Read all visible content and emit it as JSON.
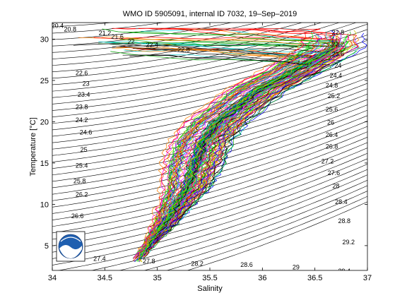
{
  "chart_data": {
    "type": "line",
    "title": "WMO ID 5905091, internal ID 7032, 19–Sep–2019",
    "xlabel": "Salinity",
    "ylabel": "Temperature [°C]",
    "xlim": [
      34,
      37
    ],
    "ylim": [
      2,
      32
    ],
    "xticks": [
      34,
      34.5,
      35,
      35.5,
      36,
      36.5,
      37
    ],
    "xtick_labels": [
      "34",
      "34.5",
      "35",
      "35.5",
      "36",
      "36.5",
      "37"
    ],
    "yticks": [
      5,
      10,
      15,
      20,
      25,
      30
    ],
    "ytick_labels": [
      "5",
      "10",
      "15",
      "20",
      "25",
      "30"
    ],
    "grid": false,
    "isopycnal_labels": [
      {
        "text": "20.4",
        "s": 34.05,
        "t": 31.6
      },
      {
        "text": "20.8",
        "s": 34.17,
        "t": 31.2
      },
      {
        "text": "21.2",
        "s": 34.5,
        "t": 30.7
      },
      {
        "text": "21.6",
        "s": 34.62,
        "t": 30.3
      },
      {
        "text": "22",
        "s": 34.75,
        "t": 29.7
      },
      {
        "text": "22.4",
        "s": 34.95,
        "t": 29.3
      },
      {
        "text": "22.8",
        "s": 35.25,
        "t": 28.7
      },
      {
        "text": "22.6",
        "s": 34.28,
        "t": 25.9
      },
      {
        "text": "23",
        "s": 34.32,
        "t": 24.6
      },
      {
        "text": "23.4",
        "s": 34.3,
        "t": 23.3
      },
      {
        "text": "23.8",
        "s": 34.28,
        "t": 21.8
      },
      {
        "text": "24.2",
        "s": 34.28,
        "t": 20.2
      },
      {
        "text": "24.6",
        "s": 34.32,
        "t": 18.7
      },
      {
        "text": "25",
        "s": 34.3,
        "t": 16.6
      },
      {
        "text": "25.4",
        "s": 34.28,
        "t": 14.7
      },
      {
        "text": "25.8",
        "s": 34.26,
        "t": 12.8
      },
      {
        "text": "26.2",
        "s": 34.28,
        "t": 11.2
      },
      {
        "text": "26.6",
        "s": 34.24,
        "t": 8.6
      },
      {
        "text": "27.4",
        "s": 34.45,
        "t": 3.4
      },
      {
        "text": "27.8",
        "s": 34.92,
        "t": 3.1
      },
      {
        "text": "28.2",
        "s": 35.38,
        "t": 2.8
      },
      {
        "text": "28.6",
        "s": 35.85,
        "t": 2.7
      },
      {
        "text": "29",
        "s": 36.32,
        "t": 2.4
      },
      {
        "text": "29.4",
        "s": 36.78,
        "t": 1.9
      },
      {
        "text": "29.2",
        "s": 36.82,
        "t": 5.4
      },
      {
        "text": "28.8",
        "s": 36.78,
        "t": 8.0
      },
      {
        "text": "28.4",
        "s": 36.75,
        "t": 10.3
      },
      {
        "text": "28",
        "s": 36.7,
        "t": 12.2
      },
      {
        "text": "27.6",
        "s": 36.68,
        "t": 13.8
      },
      {
        "text": "27.2",
        "s": 36.62,
        "t": 15.2
      },
      {
        "text": "26.8",
        "s": 36.66,
        "t": 17.0
      },
      {
        "text": "26.4",
        "s": 36.66,
        "t": 18.4
      },
      {
        "text": "26",
        "s": 36.65,
        "t": 19.9
      },
      {
        "text": "25.6",
        "s": 36.66,
        "t": 21.5
      },
      {
        "text": "25.2",
        "s": 36.68,
        "t": 23.1
      },
      {
        "text": "24.8",
        "s": 36.66,
        "t": 24.4
      },
      {
        "text": "24.4",
        "s": 36.7,
        "t": 25.6
      },
      {
        "text": "24",
        "s": 36.72,
        "t": 26.8
      },
      {
        "text": "23.6",
        "s": 36.72,
        "t": 28.2
      },
      {
        "text": "23.2",
        "s": 36.72,
        "t": 29.4
      },
      {
        "text": "22.8",
        "s": 36.72,
        "t": 30.8
      }
    ],
    "series_envelope": {
      "description_points_s": [
        34.8,
        34.95,
        35.1,
        35.2,
        35.3,
        35.38,
        35.45,
        35.6,
        35.8,
        36.0,
        36.3,
        36.5,
        36.7
      ],
      "description_points_t": [
        3.0,
        5.5,
        8.0,
        10.0,
        12.0,
        15.0,
        17.5,
        20.0,
        22.0,
        24.0,
        26.0,
        27.5,
        29.0
      ]
    },
    "logo": "NOAA"
  }
}
